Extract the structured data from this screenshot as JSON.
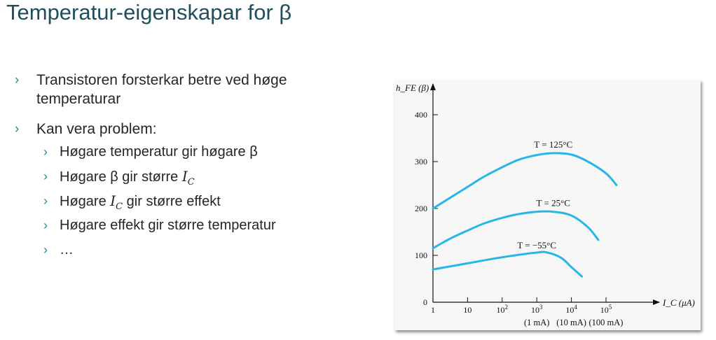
{
  "slide": {
    "title": "Temperatur-eigenskapar for β",
    "bullets": [
      {
        "text_line1": "Transistoren forsterkar betre ved høge",
        "text_line2": "temperaturar"
      },
      {
        "text": "Kan vera problem:"
      }
    ],
    "sub_bullets": [
      {
        "before": "Høgare temperatur gir høgare β",
        "var": "",
        "after": ""
      },
      {
        "before": "Høgare β gir større ",
        "var": "I",
        "sub": "C",
        "after": ""
      },
      {
        "before": "Høgare ",
        "var": "I",
        "sub": "C",
        "after": " gir større effekt"
      },
      {
        "before": "Høgare effekt gir større temperatur",
        "var": "",
        "after": ""
      },
      {
        "before": "…",
        "var": "",
        "after": ""
      }
    ],
    "bullet_marker": "›",
    "accent_color": "#2a8a96",
    "title_color": "#1f4e5c"
  },
  "chart_data": {
    "type": "line",
    "ylabel": "h_FE (β)",
    "xlabel": "I_C (μA)",
    "x_scale": "log",
    "xlim": [
      1,
      100000
    ],
    "ylim": [
      0,
      400
    ],
    "y_ticks": [
      {
        "value": 0,
        "label": "0"
      },
      {
        "value": 100,
        "label": "100"
      },
      {
        "value": 200,
        "label": "200"
      },
      {
        "value": 300,
        "label": "300"
      },
      {
        "value": 400,
        "label": "400"
      }
    ],
    "x_ticks": [
      {
        "value": 1,
        "label": "1",
        "exp": ""
      },
      {
        "value": 10,
        "label": "10",
        "exp": ""
      },
      {
        "value": 100,
        "label": "10",
        "exp": "2"
      },
      {
        "value": 1000,
        "label": "10",
        "exp": "3"
      },
      {
        "value": 10000,
        "label": "10",
        "exp": "4"
      },
      {
        "value": 100000,
        "label": "10",
        "exp": "5"
      }
    ],
    "x_sub_labels": [
      {
        "value": 1000,
        "label": "(1 mA)"
      },
      {
        "value": 10000,
        "label": "(10 mA)"
      },
      {
        "value": 100000,
        "label": "(100 mA)"
      }
    ],
    "series": [
      {
        "name": "T = 125°C",
        "x": [
          1,
          3,
          10,
          30,
          100,
          300,
          1000,
          3000,
          10000,
          30000,
          100000,
          200000
        ],
        "y": [
          200,
          222,
          246,
          268,
          288,
          304,
          314,
          318,
          315,
          300,
          275,
          250
        ]
      },
      {
        "name": "T = 25°C",
        "x": [
          1,
          3,
          10,
          30,
          100,
          300,
          1000,
          3000,
          10000,
          30000,
          60000
        ],
        "y": [
          115,
          135,
          153,
          168,
          180,
          188,
          193,
          193,
          185,
          160,
          133
        ]
      },
      {
        "name": "T = −55°C",
        "x": [
          1,
          10,
          100,
          1000,
          2000,
          5000,
          10000,
          20000
        ],
        "y": [
          70,
          83,
          96,
          106,
          106,
          95,
          75,
          55
        ]
      }
    ],
    "series_label_positions": [
      {
        "x": 3000,
        "y": 330
      },
      {
        "x": 3000,
        "y": 205
      },
      {
        "x": 1000,
        "y": 115
      }
    ],
    "line_color": "#28b6e6",
    "grid": false,
    "legend": "none"
  }
}
